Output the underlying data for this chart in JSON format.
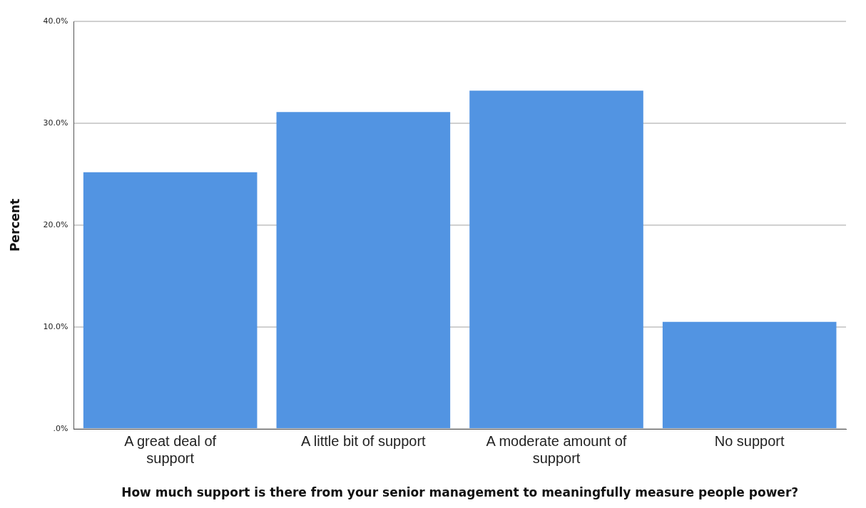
{
  "chart_data": {
    "type": "bar",
    "xlabel": "How much support is there from your senior management to meaningfully measure people power?",
    "ylabel": "Percent",
    "categories": [
      "A great deal of support",
      "A little bit of support",
      "A moderate amount of support",
      "No support"
    ],
    "values": [
      25.2,
      31.1,
      33.2,
      10.5
    ],
    "color": "#5294e2",
    "ylim": [
      0,
      40
    ],
    "yticks": [
      {
        "value": 0,
        "label": ".0%"
      },
      {
        "value": 10,
        "label": "10.0%"
      },
      {
        "value": 20,
        "label": "20.0%"
      },
      {
        "value": 30,
        "label": "30.0%"
      },
      {
        "value": 40,
        "label": "40.0%"
      }
    ],
    "grid": "y",
    "legend": false
  }
}
